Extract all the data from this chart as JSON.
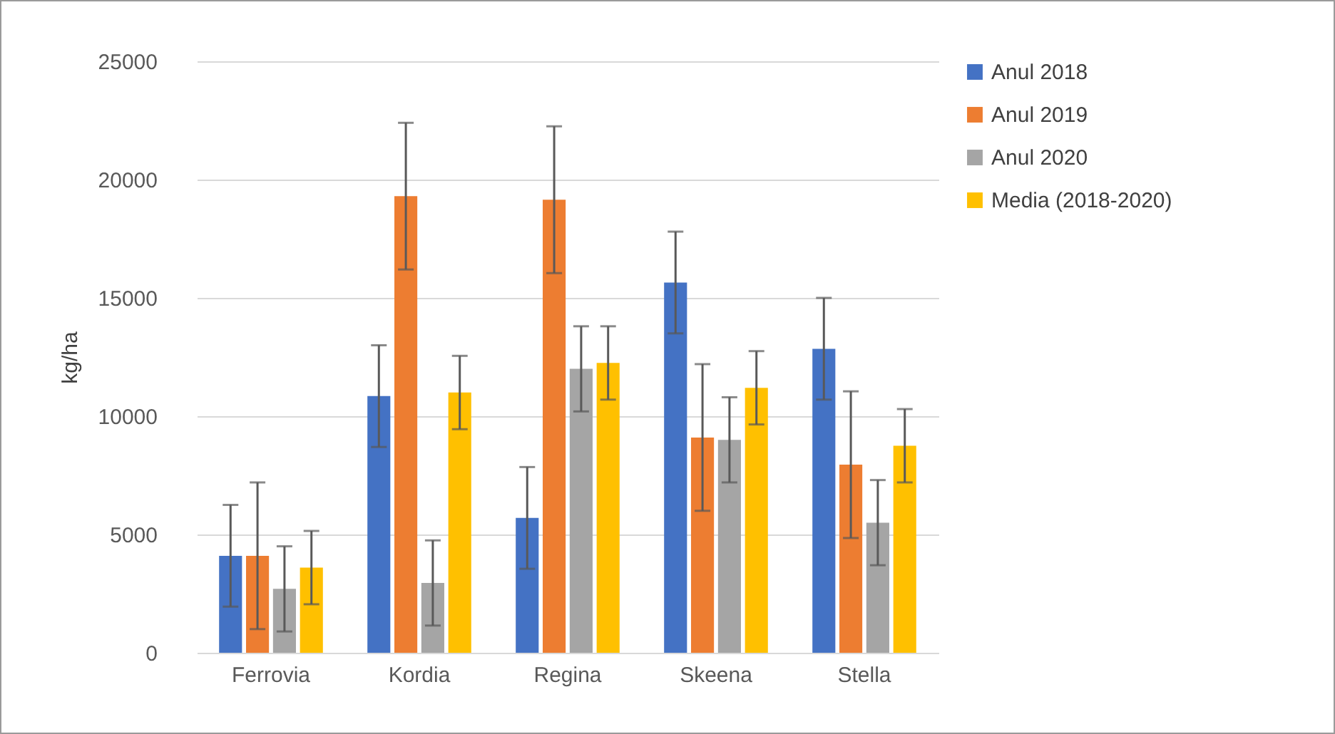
{
  "chart_data": {
    "type": "bar",
    "ylabel": "kg/ha",
    "categories": [
      "Ferrovia",
      "Kordia",
      "Regina",
      "Skeena",
      "Stella"
    ],
    "series": [
      {
        "name": "Anul 2018",
        "color": "#4472c4",
        "values": [
          4100,
          10850,
          5700,
          15650,
          12850
        ],
        "errors": [
          2150,
          2150,
          2150,
          2150,
          2150
        ]
      },
      {
        "name": "Anul 2019",
        "color": "#ed7d31",
        "values": [
          4100,
          19300,
          19150,
          9100,
          7950
        ],
        "errors": [
          3100,
          3100,
          3100,
          3100,
          3100
        ]
      },
      {
        "name": "Anul 2020",
        "color": "#a5a5a5",
        "values": [
          2700,
          2950,
          12000,
          9000,
          5500
        ],
        "errors": [
          1800,
          1800,
          1800,
          1800,
          1800
        ]
      },
      {
        "name": "Media  (2018-2020)",
        "color": "#ffc000",
        "values": [
          3600,
          11000,
          12250,
          11200,
          8750
        ],
        "errors": [
          1550,
          1550,
          1550,
          1550,
          1550
        ]
      }
    ],
    "ylim": [
      0,
      25000
    ],
    "yticks": [
      0,
      5000,
      10000,
      15000,
      20000,
      25000
    ],
    "grid": "y",
    "legend": "right"
  }
}
